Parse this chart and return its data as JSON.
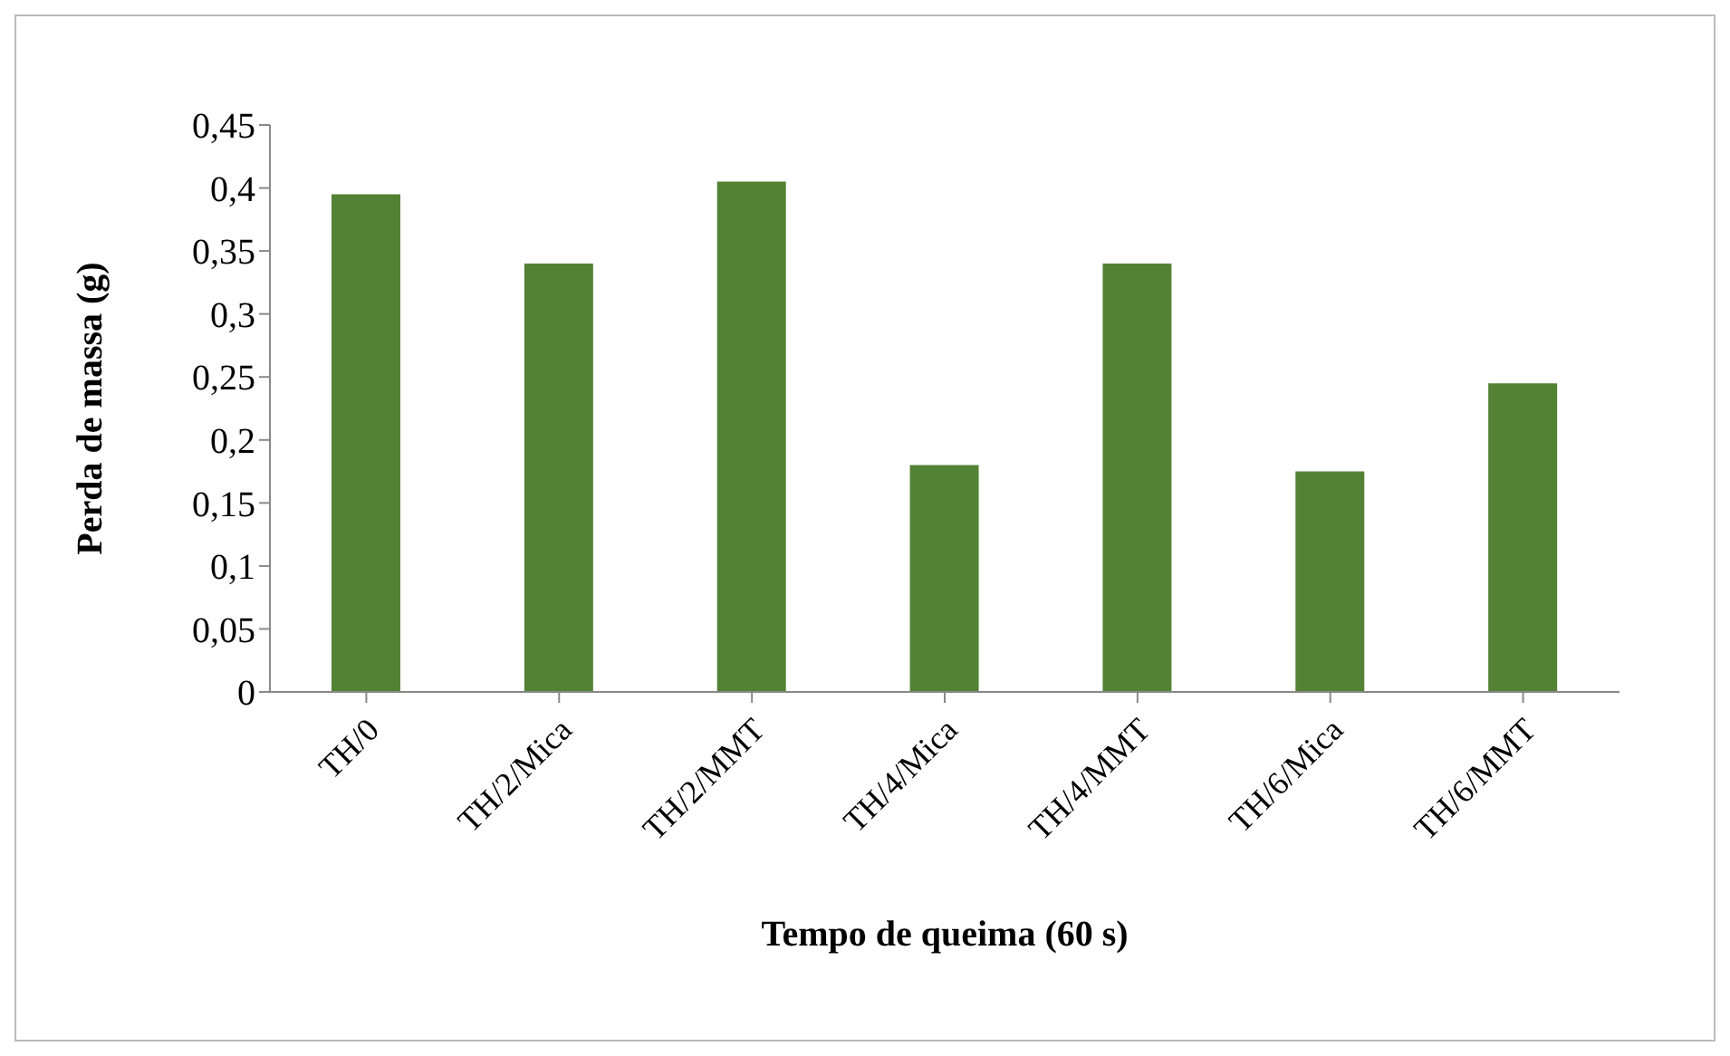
{
  "chart_data": {
    "type": "bar",
    "xlabel": "Tempo de queima (60 s)",
    "ylabel": "Perda de massa (g)",
    "categories": [
      "TH/0",
      "TH/2/Mica",
      "TH/2/MMT",
      "TH/4/Mica",
      "TH/4/MMT",
      "TH/6/Mica",
      "TH/6/MMT"
    ],
    "values": [
      0.395,
      0.34,
      0.405,
      0.18,
      0.34,
      0.175,
      0.245
    ],
    "color": "#548235",
    "ylim": [
      0,
      0.45
    ],
    "yticks": [
      {
        "value": 0,
        "label": "0"
      },
      {
        "value": 0.05,
        "label": "0,05"
      },
      {
        "value": 0.1,
        "label": "0,1"
      },
      {
        "value": 0.15,
        "label": "0,15"
      },
      {
        "value": 0.2,
        "label": "0,2"
      },
      {
        "value": 0.25,
        "label": "0,25"
      },
      {
        "value": 0.3,
        "label": "0,3"
      },
      {
        "value": 0.35,
        "label": "0,35"
      },
      {
        "value": 0.4,
        "label": "0,4"
      },
      {
        "value": 0.45,
        "label": "0,45"
      }
    ],
    "grid": false,
    "legend": false
  }
}
